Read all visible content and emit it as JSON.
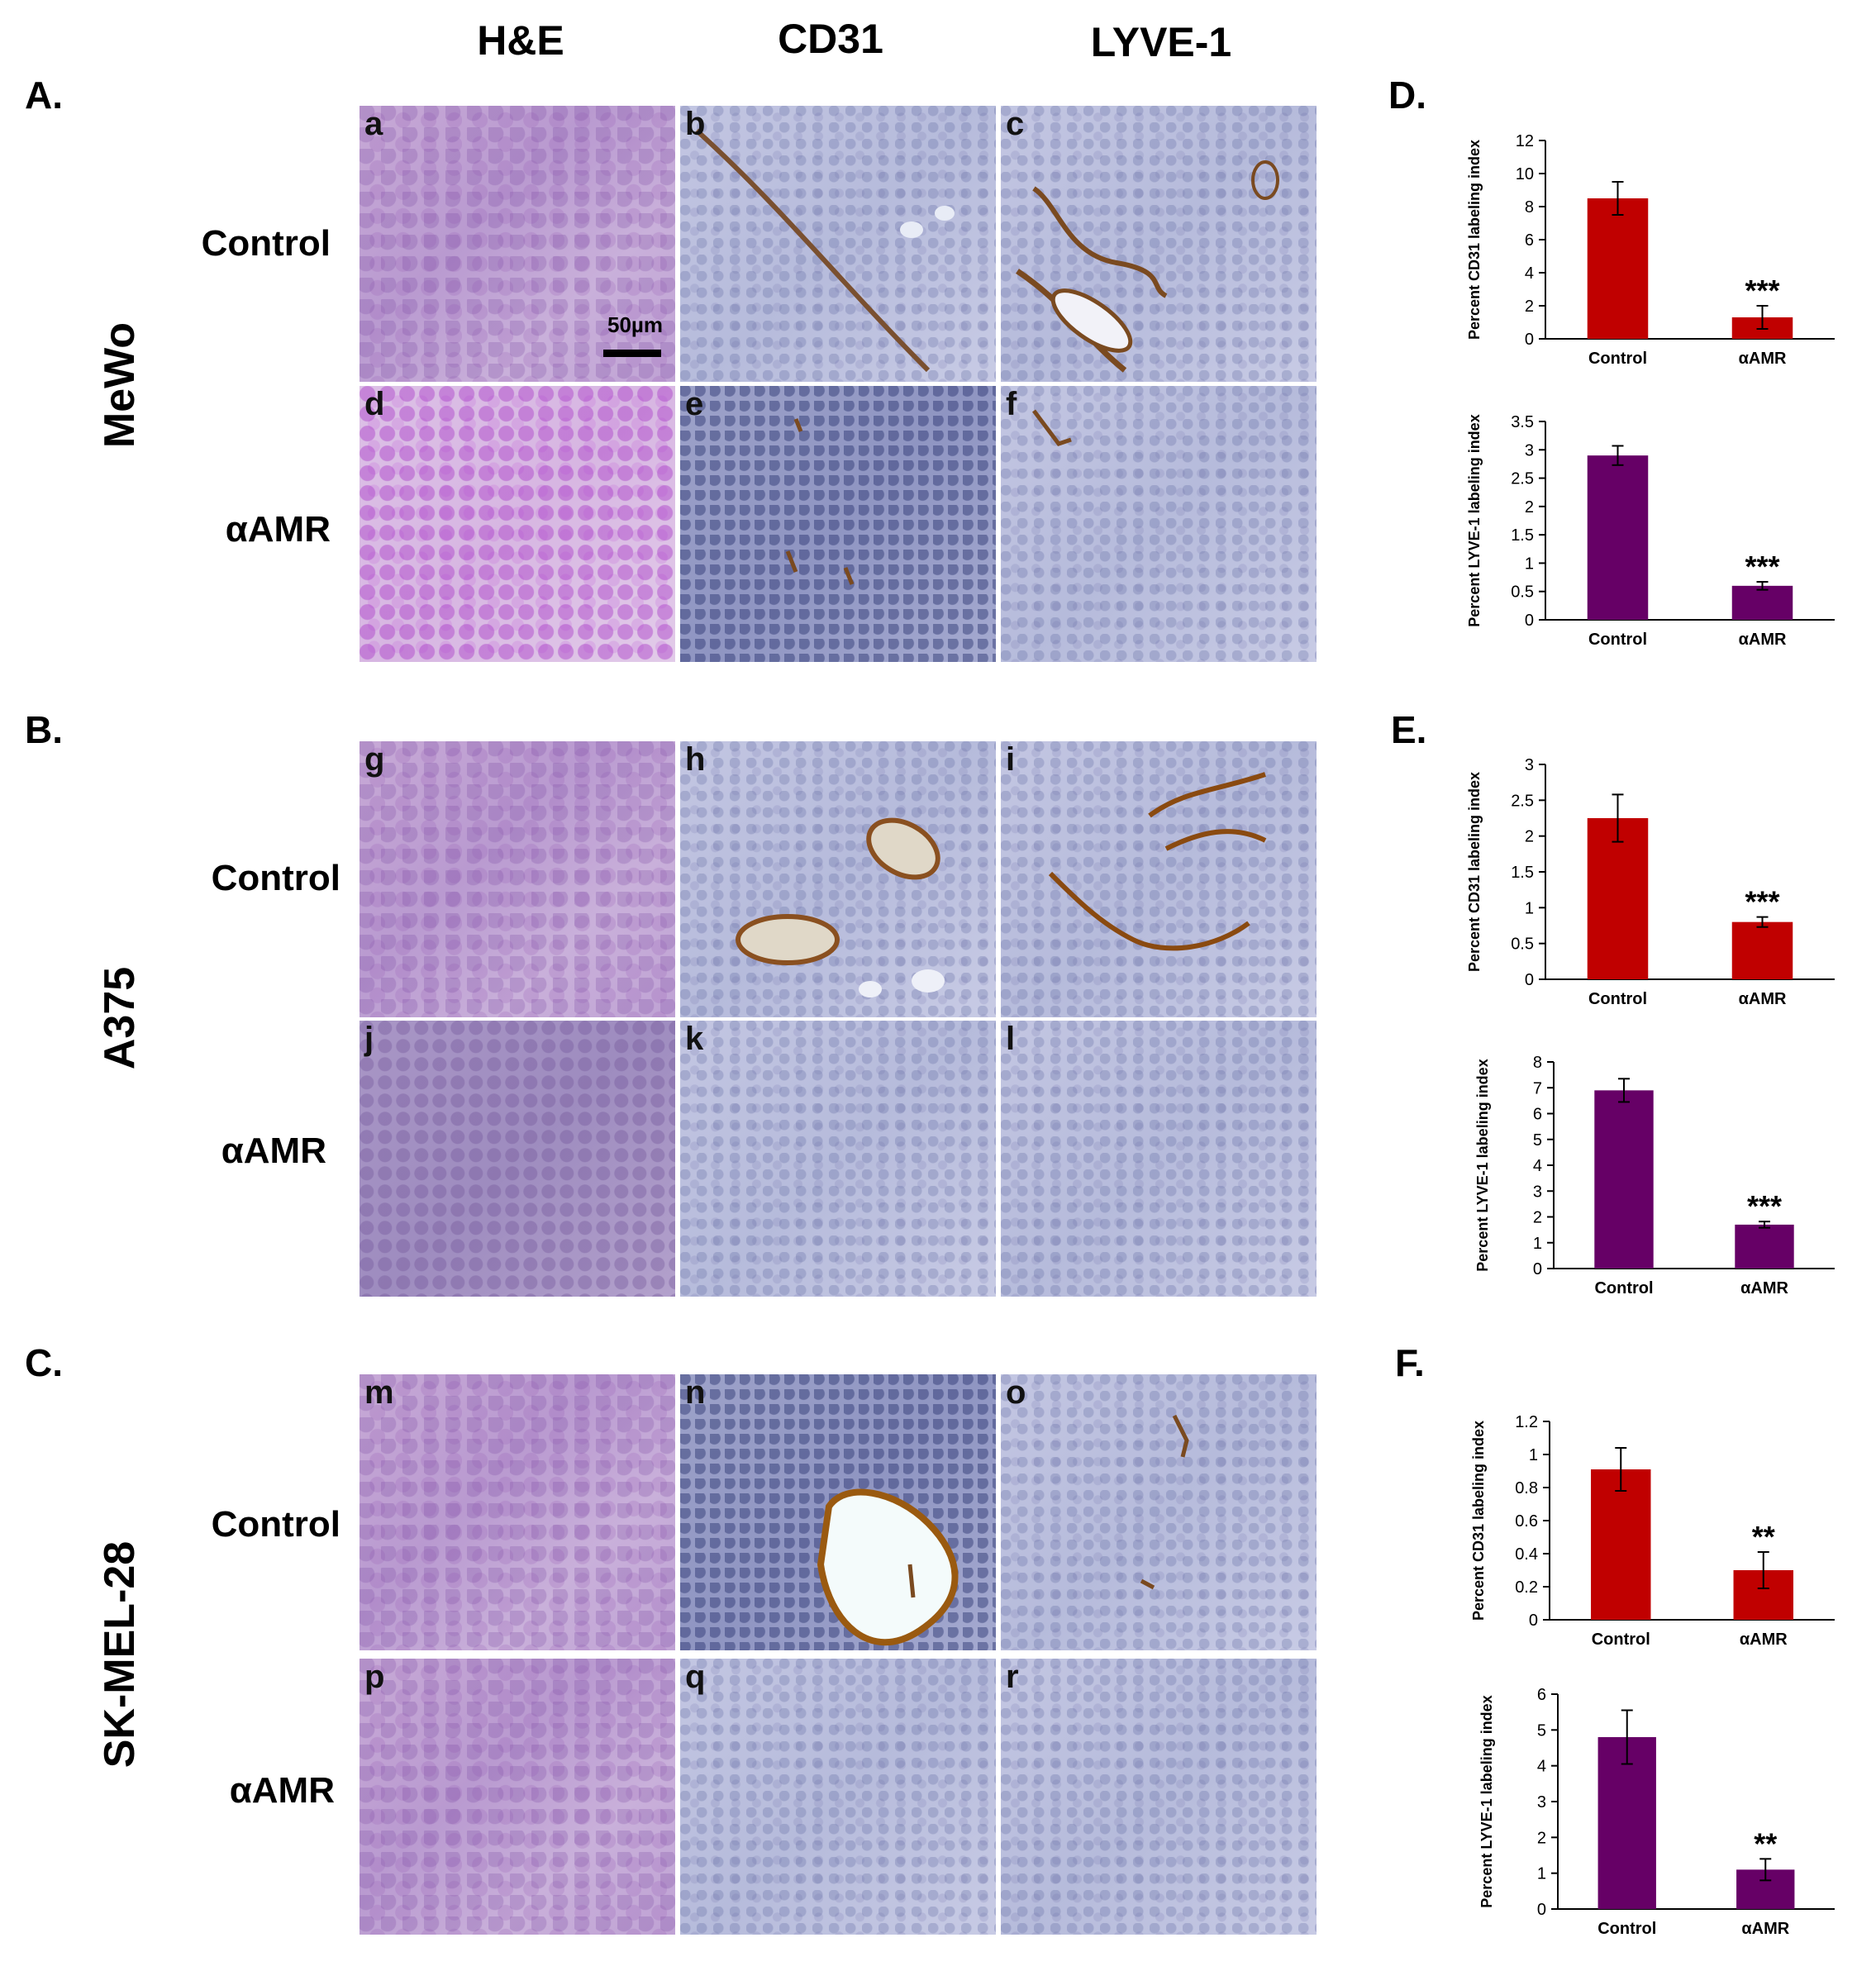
{
  "columns": [
    "H&E",
    "CD31",
    "LYVE-1"
  ],
  "sections": [
    {
      "label": "A.",
      "cell_line": "MeWo",
      "rows": [
        "Control",
        "αAMR"
      ],
      "letters": [
        "a",
        "b",
        "c",
        "d",
        "e",
        "f"
      ]
    },
    {
      "label": "B.",
      "cell_line": "A375",
      "rows": [
        "Control",
        "αAMR"
      ],
      "letters": [
        "g",
        "h",
        "i",
        "j",
        "k",
        "l"
      ]
    },
    {
      "label": "C.",
      "cell_line": "SK-MEL-28",
      "rows": [
        "Control",
        "αAMR"
      ],
      "letters": [
        "m",
        "n",
        "o",
        "p",
        "q",
        "r"
      ]
    }
  ],
  "scale_bar": "50µm",
  "chart_labels": [
    "D.",
    "E.",
    "F."
  ],
  "colors": {
    "cd31": "#c00000",
    "lyve1": "#660066"
  },
  "chart_data": [
    {
      "type": "bar",
      "panel": "D.",
      "categories": [
        "Control",
        "αAMR"
      ],
      "values": [
        8.5,
        1.3
      ],
      "errors": [
        1.0,
        0.7
      ],
      "ylabel": "Percent CD31 labeling index",
      "ylim": [
        0,
        12
      ],
      "ticks": [
        0,
        2,
        4,
        6,
        8,
        10,
        12
      ],
      "annotation": "***",
      "color": "#c00000"
    },
    {
      "type": "bar",
      "panel": "D.",
      "categories": [
        "Control",
        "αAMR"
      ],
      "values": [
        2.9,
        0.6
      ],
      "errors": [
        0.17,
        0.07
      ],
      "ylabel": "Percent LYVE-1 labeling index",
      "ylim": [
        0,
        3.5
      ],
      "ticks": [
        0,
        0.5,
        1,
        1.5,
        2,
        2.5,
        3,
        3.5
      ],
      "annotation": "***",
      "color": "#660066"
    },
    {
      "type": "bar",
      "panel": "E.",
      "categories": [
        "Control",
        "αAMR"
      ],
      "values": [
        2.25,
        0.8
      ],
      "errors": [
        0.33,
        0.07
      ],
      "ylabel": "Percent CD31 labeling index",
      "ylim": [
        0,
        3
      ],
      "ticks": [
        0,
        0.5,
        1,
        1.5,
        2,
        2.5,
        3
      ],
      "annotation": "***",
      "color": "#c00000"
    },
    {
      "type": "bar",
      "panel": "E.",
      "categories": [
        "Control",
        "αAMR"
      ],
      "values": [
        6.9,
        1.7
      ],
      "errors": [
        0.45,
        0.12
      ],
      "ylabel": "Percent LYVE-1 labeling index",
      "ylim": [
        0,
        8
      ],
      "ticks": [
        0,
        1,
        2,
        3,
        4,
        5,
        6,
        7,
        8
      ],
      "annotation": "***",
      "color": "#660066"
    },
    {
      "type": "bar",
      "panel": "F.",
      "categories": [
        "Control",
        "αAMR"
      ],
      "values": [
        0.91,
        0.3
      ],
      "errors": [
        0.13,
        0.11
      ],
      "ylabel": "Percent CD31 labeling index",
      "ylim": [
        0,
        1.2
      ],
      "ticks": [
        0,
        0.2,
        0.4,
        0.6,
        0.8,
        1,
        1.2
      ],
      "annotation": "**",
      "color": "#c00000"
    },
    {
      "type": "bar",
      "panel": "F.",
      "categories": [
        "Control",
        "αAMR"
      ],
      "values": [
        4.8,
        1.1
      ],
      "errors": [
        0.75,
        0.3
      ],
      "ylabel": "Percent LYVE-1 labeling index",
      "ylim": [
        0,
        6
      ],
      "ticks": [
        0,
        1,
        2,
        3,
        4,
        5,
        6
      ],
      "annotation": "**",
      "color": "#660066"
    }
  ]
}
